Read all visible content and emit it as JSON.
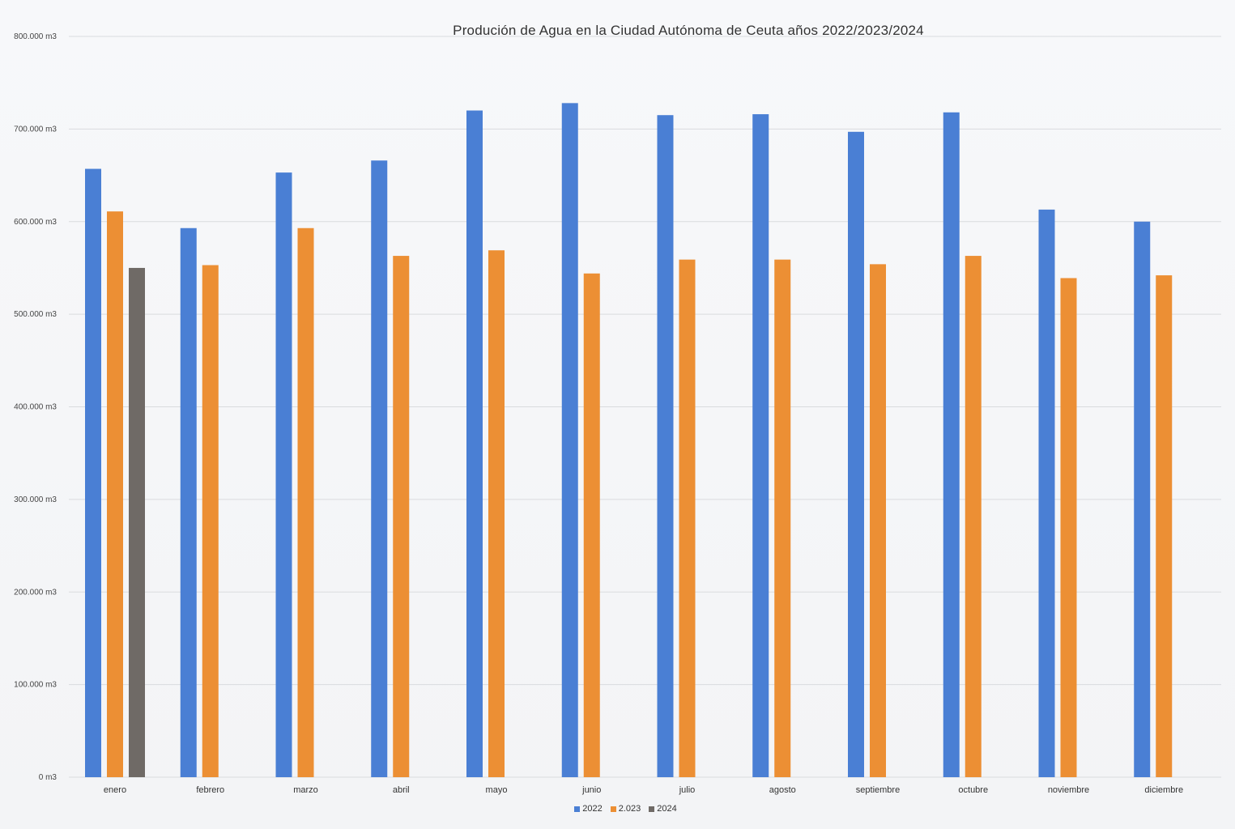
{
  "chart_data": {
    "type": "bar",
    "title": "Produción de Agua en la Ciudad Autónoma de Ceuta años 2022/2023/2024",
    "categories": [
      "enero",
      "febrero",
      "marzo",
      "abril",
      "mayo",
      "junio",
      "julio",
      "agosto",
      "septiembre",
      "octubre",
      "noviembre",
      "diciembre"
    ],
    "series": [
      {
        "name": "2022",
        "color": "#4a7fd4",
        "values": [
          657000,
          593000,
          653000,
          666000,
          720000,
          728000,
          715000,
          716000,
          697000,
          718000,
          613000,
          600000
        ]
      },
      {
        "name": "2.023",
        "color": "#ec8f34",
        "values": [
          611000,
          553000,
          593000,
          563000,
          569000,
          544000,
          559000,
          559000,
          554000,
          563000,
          539000,
          542000
        ]
      },
      {
        "name": "2024",
        "color": "#6f6a66",
        "values": [
          550000,
          null,
          null,
          null,
          null,
          null,
          null,
          null,
          null,
          null,
          null,
          null
        ]
      }
    ],
    "ylim": [
      0,
      800000
    ],
    "yticks": [
      {
        "value": 0,
        "label": "0 m3"
      },
      {
        "value": 100000,
        "label": "100.000 m3"
      },
      {
        "value": 200000,
        "label": "200.000 m3"
      },
      {
        "value": 300000,
        "label": "300.000 m3"
      },
      {
        "value": 400000,
        "label": "400.000 m3"
      },
      {
        "value": 500000,
        "label": "500.000 m3"
      },
      {
        "value": 600000,
        "label": "600.000 m3"
      },
      {
        "value": 700000,
        "label": "700.000 m3"
      },
      {
        "value": 800000,
        "label": "800.000 m3"
      }
    ],
    "xlabel": "",
    "ylabel": "",
    "grid": true,
    "legend_position": "bottom"
  }
}
